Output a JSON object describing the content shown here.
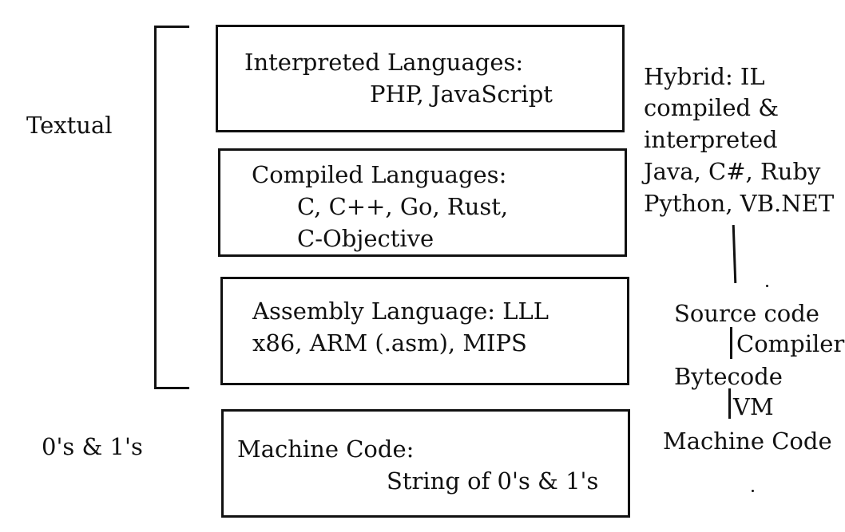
{
  "left_labels": {
    "textual": "Textual",
    "binary": "0's & 1's"
  },
  "levels": [
    {
      "title": "Interpreted Languages:",
      "examples": [
        "PHP, JavaScript"
      ]
    },
    {
      "title": "Compiled Languages:",
      "examples": [
        "C, C++, Go, Rust,",
        "C-Objective"
      ]
    },
    {
      "title": "Assembly Language: LLL",
      "examples": [
        "x86, ARM (.asm), MIPS"
      ]
    },
    {
      "title": "Machine Code:",
      "examples": [
        "String of 0's & 1's"
      ]
    }
  ],
  "hybrid": {
    "lines": [
      "Hybrid: IL",
      "compiled &",
      "interpreted",
      "Java, C#, Ruby",
      "Python, VB.NET"
    ]
  },
  "pipeline": {
    "source": "Source code",
    "step1": "Compiler",
    "bytecode": "Bytecode",
    "step2": "VM",
    "machine": "Machine Code"
  }
}
